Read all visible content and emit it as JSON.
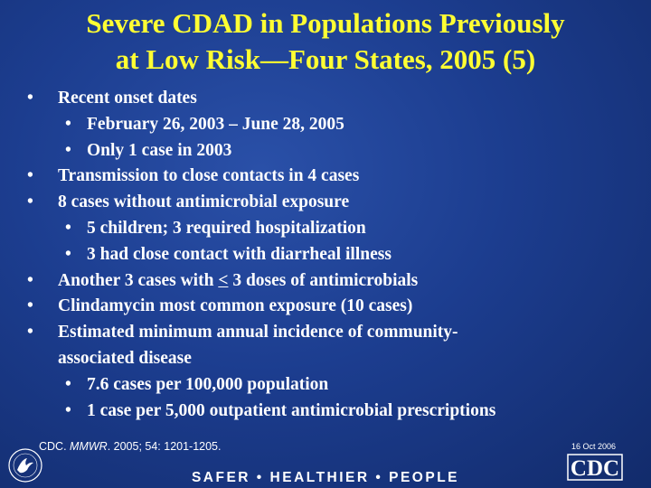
{
  "slide": {
    "title_line1": "Severe CDAD in Populations Previously",
    "title_line2": "at Low Risk—Four States, 2005 (5)",
    "bullet_char": "•",
    "items": [
      {
        "text": "Recent onset dates"
      },
      {
        "text": "February 26, 2003 – June 28, 2005"
      },
      {
        "text": "Only 1 case in 2003"
      },
      {
        "text": "Transmission to close contacts in 4 cases"
      },
      {
        "text": "8 cases without antimicrobial exposure"
      },
      {
        "text": "5 children; 3 required hospitalization"
      },
      {
        "text": "3 had close contact with diarrheal illness"
      },
      {
        "text_before": "Another 3 cases with ",
        "underlined": "<",
        "text_after": " 3 doses of antimicrobials"
      },
      {
        "text": "Clindamycin most common exposure (10 cases)"
      },
      {
        "line1": "Estimated minimum annual incidence of community-",
        "line2": "associated disease"
      },
      {
        "text": "7.6 cases per 100,000 population"
      },
      {
        "text": "1 case per 5,000 outpatient antimicrobial prescriptions"
      }
    ],
    "citation": {
      "prefix": "CDC. ",
      "journal": "MMWR",
      "rest": ". 2005; 54: 1201-1205."
    },
    "date": "16 Oct 2006"
  },
  "footer": {
    "tagline": "SAFER • HEALTHIER • PEOPLE",
    "logo_text": "CDC"
  }
}
